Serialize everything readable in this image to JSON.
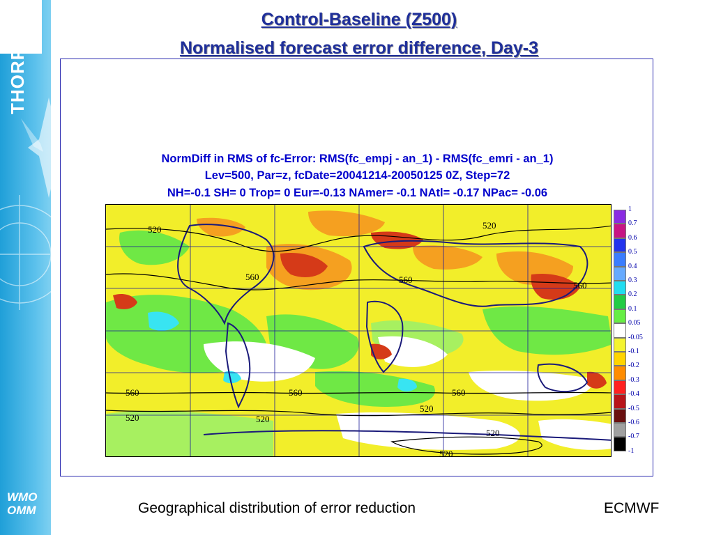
{
  "sidebar": {
    "brand": "THORPEX",
    "org_line1": "WMO",
    "org_line2": "OMM"
  },
  "slide": {
    "title_line1": "Control-Baseline (Z500)",
    "title_line2": "Normalised forecast error difference, Day-3"
  },
  "plot": {
    "header_line1": "NormDiff in RMS of fc-Error: RMS(fc_empj - an_1) - RMS(fc_emri - an_1)",
    "header_line2": "Lev=500, Par=z, fcDate=20041214-20050125 0Z, Step=72",
    "header_line3": "NH=-0.1 SH= 0 Trop= 0 Eur=-0.13 NAmer= -0.1 NAtl= -0.17 NPac= -0.06",
    "contour_labels": [
      "520",
      "560",
      "560",
      "520",
      "560",
      "560",
      "520",
      "520",
      "560",
      "560",
      "520",
      "520",
      "520",
      "520",
      "560"
    ],
    "colorbar": {
      "labels": [
        "1",
        "0.7",
        "0.6",
        "0.5",
        "0.4",
        "0.3",
        "0.2",
        "0.1",
        "0.05",
        "-0.05",
        "-0.1",
        "-0.2",
        "-0.3",
        "-0.4",
        "-0.5",
        "-0.6",
        "-0.7",
        "-1"
      ],
      "colors": [
        "#8a2be2",
        "#c71585",
        "#2233ee",
        "#3b7dff",
        "#66aaff",
        "#22ddf0",
        "#22cc44",
        "#66ee44",
        "#ffffff",
        "#f4f430",
        "#ffd400",
        "#ff8c00",
        "#ff2020",
        "#b8141a",
        "#6a1010",
        "#a0a0a0",
        "#000000"
      ]
    },
    "map_colors": {
      "yellow": "#f2ee2a",
      "orange": "#f5a020",
      "red": "#d53a18",
      "green": "#6fe845",
      "light_green": "#a7f060",
      "cyan": "#38e4f2",
      "land": "#1a1a7a"
    }
  },
  "footer": {
    "caption": "Geographical distribution of error reduction",
    "source": "ECMWF"
  }
}
